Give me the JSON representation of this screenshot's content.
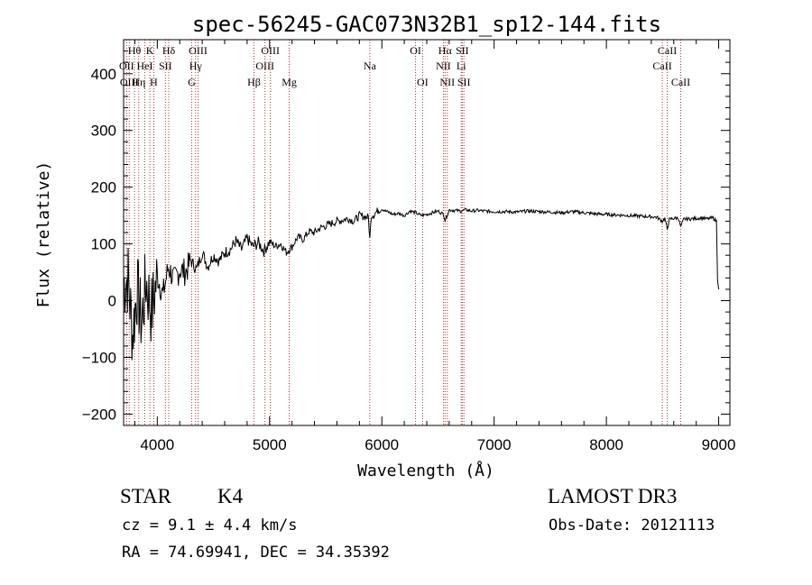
{
  "chart_data": {
    "type": "line",
    "title": "spec-56245-GAC073N32B1_sp12-144.fits",
    "xlabel": "Wavelength (Å)",
    "ylabel": "Flux (relative)",
    "xlim": [
      3700,
      9100
    ],
    "ylim": [
      -220,
      460
    ],
    "xticks": [
      4000,
      5000,
      6000,
      7000,
      8000,
      9000
    ],
    "yticks": [
      -200,
      -100,
      0,
      100,
      200,
      300,
      400
    ],
    "grid": false,
    "series": [
      {
        "name": "flux",
        "x": [
          3700,
          3740,
          3780,
          3820,
          3860,
          3900,
          3950,
          4000,
          4050,
          4100,
          4150,
          4200,
          4250,
          4300,
          4350,
          4400,
          4450,
          4500,
          4550,
          4600,
          4650,
          4700,
          4750,
          4800,
          4850,
          4900,
          4950,
          5000,
          5050,
          5100,
          5150,
          5200,
          5250,
          5300,
          5350,
          5400,
          5450,
          5500,
          5550,
          5600,
          5650,
          5700,
          5750,
          5800,
          5850,
          5880,
          5893,
          5905,
          5930,
          5970,
          6000,
          6030,
          6060,
          6100,
          6150,
          6200,
          6250,
          6300,
          6350,
          6400,
          6450,
          6500,
          6550,
          6563,
          6580,
          6600,
          6650,
          6700,
          6750,
          6800,
          6850,
          6900,
          7000,
          7100,
          7200,
          7300,
          7400,
          7500,
          7600,
          7700,
          7800,
          7900,
          8000,
          8100,
          8200,
          8300,
          8400,
          8450,
          8498,
          8520,
          8542,
          8560,
          8600,
          8640,
          8662,
          8690,
          8750,
          8800,
          8850,
          8900,
          8950,
          8980,
          8990,
          9000
        ],
        "y": [
          30,
          40,
          -60,
          20,
          -40,
          35,
          -20,
          45,
          10,
          60,
          35,
          55,
          50,
          70,
          55,
          85,
          60,
          80,
          70,
          85,
          90,
          105,
          90,
          110,
          95,
          102,
          88,
          104,
          96,
          100,
          85,
          95,
          112,
          108,
          122,
          120,
          128,
          132,
          136,
          140,
          142,
          145,
          140,
          150,
          148,
          147,
          108,
          150,
          152,
          160,
          162,
          158,
          156,
          152,
          154,
          150,
          158,
          155,
          150,
          152,
          155,
          158,
          152,
          142,
          150,
          160,
          159,
          158,
          160,
          158,
          159,
          158,
          157,
          157,
          156,
          158,
          157,
          156,
          155,
          157,
          155,
          153,
          152,
          151,
          150,
          149,
          148,
          147,
          140,
          145,
          126,
          143,
          145,
          146,
          130,
          144,
          144,
          145,
          146,
          144,
          146,
          140,
          40,
          20
        ]
      }
    ],
    "lines": [
      {
        "label": "OII",
        "wave": 3727,
        "row": 2
      },
      {
        "label": "OIII",
        "wave": 3750,
        "row": 3
      },
      {
        "label": "Hθ",
        "wave": 3797,
        "row": 1
      },
      {
        "label": "Hη",
        "wave": 3835,
        "row": 3
      },
      {
        "label": "HeI",
        "wave": 3889,
        "row": 2
      },
      {
        "label": "K",
        "wave": 3934,
        "row": 1
      },
      {
        "label": "H",
        "wave": 3969,
        "row": 3
      },
      {
        "label": "SII",
        "wave": 4072,
        "row": 2
      },
      {
        "label": "Hδ",
        "wave": 4102,
        "row": 1
      },
      {
        "label": "G",
        "wave": 4306,
        "row": 3
      },
      {
        "label": "Hγ",
        "wave": 4341,
        "row": 2
      },
      {
        "label": "OIII",
        "wave": 4363,
        "row": 1
      },
      {
        "label": "Hβ",
        "wave": 4861,
        "row": 3
      },
      {
        "label": "OIII",
        "wave": 4959,
        "row": 2
      },
      {
        "label": "OIII",
        "wave": 5007,
        "row": 1
      },
      {
        "label": "Mg",
        "wave": 5175,
        "row": 3
      },
      {
        "label": "Na",
        "wave": 5893,
        "row": 2
      },
      {
        "label": "OI",
        "wave": 6300,
        "row": 1
      },
      {
        "label": "OI",
        "wave": 6363,
        "row": 3
      },
      {
        "label": "NII",
        "wave": 6548,
        "row": 2
      },
      {
        "label": "Hα",
        "wave": 6563,
        "row": 1
      },
      {
        "label": "NII",
        "wave": 6583,
        "row": 3
      },
      {
        "label": "Li",
        "wave": 6707,
        "row": 2
      },
      {
        "label": "SII",
        "wave": 6716,
        "row": 1
      },
      {
        "label": "SII",
        "wave": 6731,
        "row": 3
      },
      {
        "label": "CaII",
        "wave": 8498,
        "row": 2
      },
      {
        "label": "CaII",
        "wave": 8542,
        "row": 1
      },
      {
        "label": "CaII",
        "wave": 8662,
        "row": 3
      }
    ],
    "colors": {
      "spectrum": "#000000",
      "lines": "#b03030"
    }
  },
  "info": {
    "obj_class": "STAR",
    "obj_subclass": "K4",
    "survey": "LAMOST DR3",
    "cz": "cz = 9.1 ± 4.4 km/s",
    "obs_date": "Obs-Date: 20121113",
    "radec": "RA =  74.69941, DEC =  34.35392"
  }
}
